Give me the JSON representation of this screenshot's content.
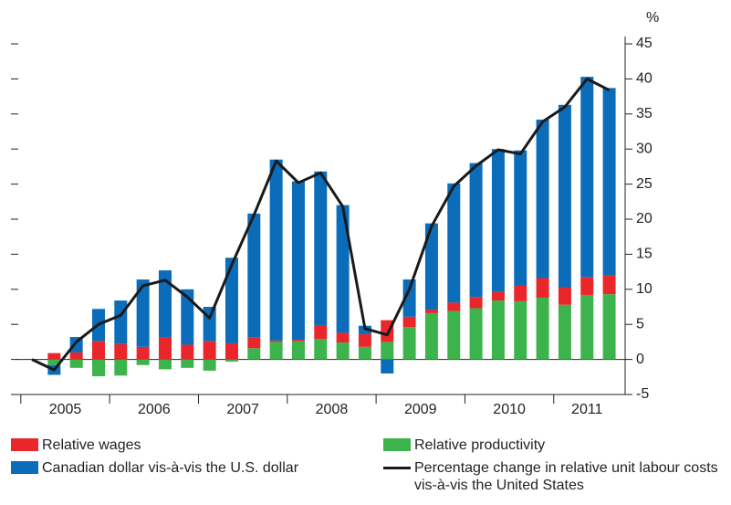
{
  "chart_data": {
    "type": "bar",
    "ylabel": "%",
    "categories": [
      null,
      null,
      null,
      null,
      null,
      null,
      null,
      null,
      null,
      null,
      null,
      null,
      null,
      null,
      null,
      null,
      null,
      null,
      null,
      null,
      null,
      null,
      null,
      null,
      null,
      null,
      null
    ],
    "year_labels": [
      "2005",
      "2006",
      "2007",
      "2008",
      "2009",
      "2010",
      "2011"
    ],
    "ylim": [
      -5,
      45
    ],
    "yticks": [
      -5,
      0,
      5,
      10,
      15,
      20,
      25,
      30,
      35,
      40,
      45
    ],
    "series": [
      {
        "name": "Relative productivity",
        "color": "#3cb44b",
        "values": [
          0,
          -0.8,
          -1.2,
          -2.4,
          -2.3,
          -0.8,
          -1.4,
          -1.2,
          -1.6,
          -0.3,
          1.6,
          2.5,
          2.6,
          2.9,
          2.4,
          1.8,
          2.5,
          4.6,
          6.6,
          6.9,
          7.3,
          8.4,
          8.3,
          8.8,
          7.8,
          9.2,
          9.3
        ]
      },
      {
        "name": "Relative wages",
        "color": "#e8262b",
        "values": [
          0,
          0.9,
          1,
          2.6,
          2.2,
          1.8,
          3.2,
          2.1,
          2.6,
          2.3,
          1.5,
          0.2,
          0.2,
          2,
          1.4,
          1.8,
          3.1,
          1.5,
          0.5,
          1.2,
          1.6,
          1.2,
          2.2,
          2.8,
          2.5,
          2.5,
          2.7
        ]
      },
      {
        "name": "Canadian dollar vis-à-vis the U.S. dollar",
        "color": "#0b6cba",
        "values": [
          0,
          -1.4,
          2.2,
          4.6,
          6.2,
          9.6,
          9.5,
          7.9,
          4.9,
          12.2,
          17.7,
          25.8,
          22.6,
          21.9,
          18.2,
          1.2,
          -2,
          5.3,
          12.3,
          17,
          19.1,
          20.4,
          19.3,
          22.6,
          26,
          28.6,
          26.7
        ]
      },
      {
        "name": "Percentage change in relative unit labour costs vis-à-vis the United States",
        "type": "line",
        "color": "#1a1a1a",
        "values": [
          0,
          -1.5,
          2.5,
          5,
          6.3,
          10.5,
          11.3,
          8.9,
          5.9,
          13.5,
          20.6,
          28.3,
          25.2,
          26.6,
          21.8,
          4.4,
          3.5,
          10,
          19,
          24.7,
          27.6,
          29.9,
          29.3,
          33.9,
          36,
          40,
          38.4
        ]
      }
    ]
  }
}
